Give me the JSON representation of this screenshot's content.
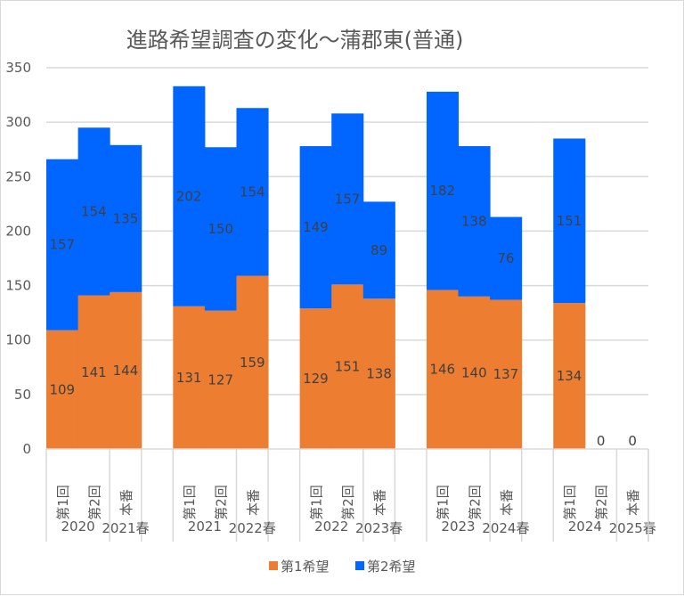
{
  "chart_data": {
    "type": "bar",
    "stacked": true,
    "title": "進路希望調査の変化～蒲郡東(普通)",
    "xlabel": "",
    "ylabel": "",
    "ylim": [
      0,
      350
    ],
    "yticks": [
      0,
      50,
      100,
      150,
      200,
      250,
      300,
      350
    ],
    "grid": true,
    "legend_position": "bottom",
    "groups": [
      {
        "year": "2020",
        "spring": "2021春"
      },
      {
        "year": "2021",
        "spring": "2022春"
      },
      {
        "year": "2022",
        "spring": "2023春"
      },
      {
        "year": "2023",
        "spring": "2024春"
      },
      {
        "year": "2024",
        "spring": "2025春"
      }
    ],
    "sub_categories": [
      "第1回",
      "第2回",
      "本番"
    ],
    "series": [
      {
        "name": "第1希望",
        "color": "#ED7D31",
        "values": [
          109,
          141,
          144,
          131,
          127,
          159,
          129,
          151,
          138,
          146,
          140,
          137,
          134,
          null,
          null
        ]
      },
      {
        "name": "第2希望",
        "color": "#0066FF",
        "values": [
          157,
          154,
          135,
          202,
          150,
          154,
          149,
          157,
          89,
          182,
          138,
          76,
          151,
          0,
          0
        ]
      }
    ]
  }
}
